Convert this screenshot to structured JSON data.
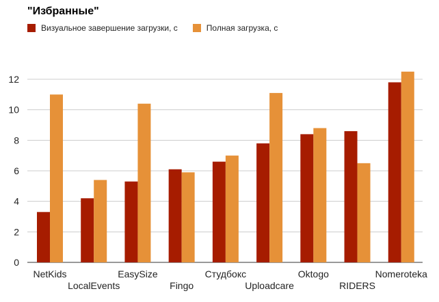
{
  "chart_data": {
    "type": "bar",
    "title": "\"Избранные\"",
    "categories": [
      "NetKids",
      "LocalEvents",
      "EasySize",
      "Fingo",
      "Студбокс",
      "Uploadcare",
      "Oktogo",
      "RIDERS",
      "Nomeroteka"
    ],
    "series": [
      {
        "name": "Визуальное завершение загрузки, с",
        "color": "#a61c00",
        "values": [
          3.3,
          4.2,
          5.3,
          6.1,
          6.6,
          7.8,
          8.4,
          8.6,
          11.8
        ]
      },
      {
        "name": "Полная загрузка, с",
        "color": "#e69138",
        "values": [
          11.0,
          5.4,
          10.4,
          5.9,
          7.0,
          11.1,
          8.8,
          6.5,
          12.5
        ]
      }
    ],
    "yticks": [
      0,
      2,
      4,
      6,
      8,
      10,
      12
    ],
    "ylim": [
      0,
      12.6
    ],
    "grid": true,
    "legend_position": "top-left"
  }
}
